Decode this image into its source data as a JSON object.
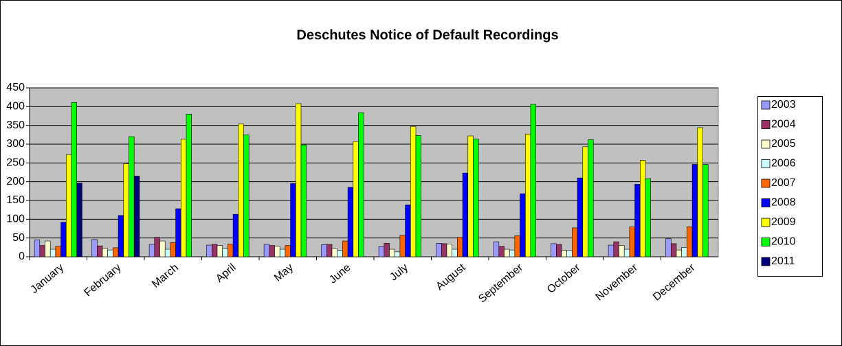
{
  "chart_data": {
    "type": "bar",
    "title": "Deschutes Notice of Default Recordings",
    "categories": [
      "January",
      "February",
      "March",
      "April",
      "May",
      "June",
      "July",
      "August",
      "September",
      "October",
      "November",
      "December"
    ],
    "series": [
      {
        "name": "2003",
        "color": "#9999ff",
        "values": [
          45,
          46,
          33,
          31,
          33,
          32,
          27,
          36,
          40,
          35,
          31,
          48
        ]
      },
      {
        "name": "2004",
        "color": "#993366",
        "values": [
          30,
          29,
          52,
          33,
          30,
          33,
          36,
          35,
          28,
          33,
          40,
          35
        ]
      },
      {
        "name": "2005",
        "color": "#ffffcc",
        "values": [
          42,
          22,
          42,
          30,
          28,
          22,
          20,
          34,
          20,
          17,
          30,
          18
        ]
      },
      {
        "name": "2006",
        "color": "#ccffff",
        "values": [
          20,
          18,
          20,
          22,
          20,
          17,
          13,
          20,
          18,
          17,
          20,
          25
        ]
      },
      {
        "name": "2007",
        "color": "#ff6600",
        "values": [
          28,
          24,
          38,
          34,
          30,
          42,
          57,
          52,
          56,
          77,
          80,
          80
        ]
      },
      {
        "name": "2008",
        "color": "#0000ff",
        "values": [
          92,
          110,
          128,
          113,
          195,
          185,
          138,
          223,
          168,
          210,
          193,
          246
        ]
      },
      {
        "name": "2009",
        "color": "#ffff00",
        "values": [
          272,
          248,
          313,
          354,
          408,
          307,
          347,
          322,
          327,
          293,
          257,
          344
        ]
      },
      {
        "name": "2010",
        "color": "#00ff00",
        "values": [
          411,
          320,
          380,
          325,
          298,
          384,
          323,
          314,
          406,
          312,
          208,
          246
        ]
      },
      {
        "name": "2011",
        "color": "#000080",
        "values": [
          196,
          215,
          null,
          null,
          null,
          null,
          null,
          null,
          null,
          null,
          null,
          null
        ]
      }
    ],
    "ylim": [
      0,
      450
    ],
    "yticks": [
      0,
      50,
      100,
      150,
      200,
      250,
      300,
      350,
      400,
      450
    ],
    "grid": true,
    "legend": "right"
  }
}
